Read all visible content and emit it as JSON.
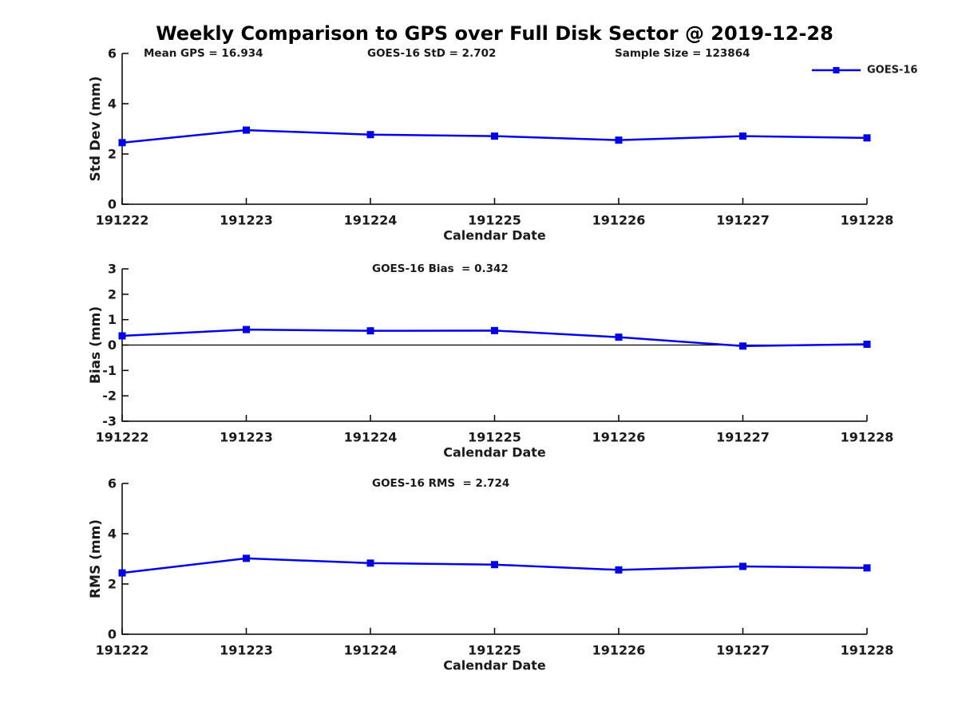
{
  "page_title": "Weekly Comparison to GPS over Full Disk Sector @ 2019-12-28",
  "colors": {
    "series": "#0000EE",
    "axis": "#000000",
    "zero_line": "#000000",
    "text": "#1a1a1a",
    "background": "#ffffff"
  },
  "legend": {
    "label": "GOES-16",
    "position": "top-right",
    "marker": "filled-square"
  },
  "chart_data": [
    {
      "type": "line",
      "ylabel": "Std Dev (mm)",
      "xlabel": "Calendar Date",
      "annotations": [
        "Mean GPS = 16.934",
        "GOES-16 StD = 2.702",
        "Sample Size = 123864"
      ],
      "categories": [
        "191222",
        "191223",
        "191224",
        "191225",
        "191226",
        "191227",
        "191228"
      ],
      "series": [
        {
          "name": "GOES-16",
          "values": [
            2.45,
            2.95,
            2.77,
            2.71,
            2.55,
            2.71,
            2.64
          ]
        }
      ],
      "ylim": [
        0,
        6
      ],
      "yticks": [
        0,
        2,
        4,
        6
      ],
      "grid": false,
      "zero_line": false,
      "legend_visible": true
    },
    {
      "type": "line",
      "ylabel": "Bias (mm)",
      "xlabel": "Calendar Date",
      "annotations": [
        "GOES-16 Bias  = 0.342"
      ],
      "categories": [
        "191222",
        "191223",
        "191224",
        "191225",
        "191226",
        "191227",
        "191228"
      ],
      "series": [
        {
          "name": "GOES-16",
          "values": [
            0.36,
            0.61,
            0.56,
            0.57,
            0.31,
            -0.04,
            0.03
          ]
        }
      ],
      "ylim": [
        -3,
        3
      ],
      "yticks": [
        3,
        2,
        1,
        0,
        -1,
        -2,
        -3
      ],
      "grid": false,
      "zero_line": true,
      "legend_visible": false
    },
    {
      "type": "line",
      "ylabel": "RMS (mm)",
      "xlabel": "Calendar Date",
      "annotations": [
        "GOES-16 RMS  = 2.724"
      ],
      "categories": [
        "191222",
        "191223",
        "191224",
        "191225",
        "191226",
        "191227",
        "191228"
      ],
      "series": [
        {
          "name": "GOES-16",
          "values": [
            2.44,
            3.02,
            2.83,
            2.77,
            2.56,
            2.7,
            2.64
          ]
        }
      ],
      "ylim": [
        0,
        6
      ],
      "yticks": [
        0,
        2,
        4,
        6
      ],
      "grid": false,
      "zero_line": false,
      "legend_visible": false
    }
  ]
}
